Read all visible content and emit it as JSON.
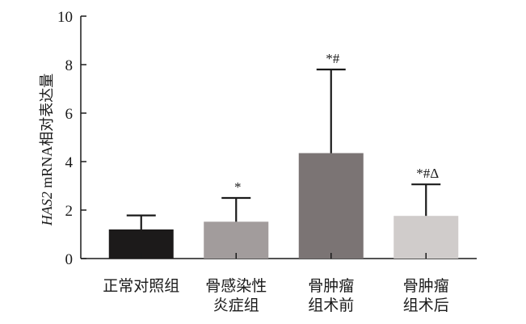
{
  "chart_data": {
    "type": "bar",
    "ylabel_italic": "HAS2",
    "ylabel_rest": " mRNA相对表达量",
    "ylim": [
      0,
      10
    ],
    "yticks": [
      0,
      2,
      4,
      6,
      8,
      10
    ],
    "categories": [
      [
        "正常对照组"
      ],
      [
        "骨感染性",
        "炎症组"
      ],
      [
        "骨肿瘤",
        "组术前"
      ],
      [
        "骨肿瘤",
        "组术后"
      ]
    ],
    "values": [
      1.2,
      1.52,
      4.35,
      1.76
    ],
    "errors": [
      0.58,
      0.98,
      3.45,
      1.3
    ],
    "annotations": [
      "",
      "*",
      "*#",
      "*#Δ"
    ],
    "colors": [
      "#1c1a1a",
      "#a29c9c",
      "#7b7474",
      "#d0cccb"
    ],
    "grid": false
  }
}
